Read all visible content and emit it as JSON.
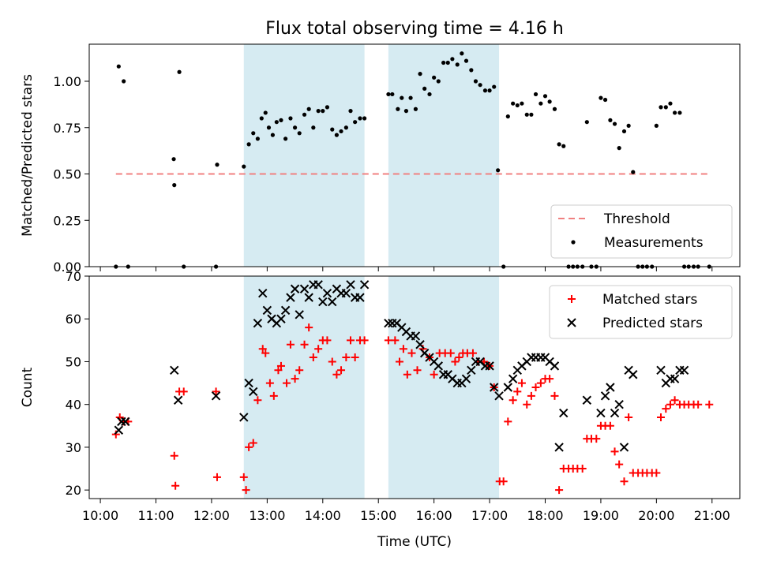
{
  "chart_data": [
    {
      "type": "scatter",
      "title": "Flux total observing time = 4.16 h",
      "xlabel": "",
      "ylabel": "Matched/Predicted stars",
      "xlim": [
        9.8,
        21.5
      ],
      "ylim": [
        0,
        1.2
      ],
      "yticks": [
        0.0,
        0.25,
        0.5,
        0.75,
        1.0
      ],
      "ytick_labels": [
        "0.00",
        "0.25",
        "0.50",
        "0.75",
        "1.00"
      ],
      "shaded_regions": [
        [
          12.58,
          14.75
        ],
        [
          15.18,
          17.17
        ]
      ],
      "shade_color": "#add8e6",
      "legend_position": "lower-right",
      "series": [
        {
          "name": "Threshold",
          "kind": "line",
          "color": "#f08080",
          "dashed": true,
          "x": [
            10.28,
            20.95
          ],
          "y": [
            0.5,
            0.5
          ]
        },
        {
          "name": "Measurements",
          "kind": "dot",
          "color": "#000000",
          "x": [
            10.28,
            10.33,
            10.42,
            10.5,
            11.32,
            11.33,
            11.42,
            11.5,
            12.08,
            12.1,
            12.58,
            12.67,
            12.75,
            12.83,
            12.9,
            12.97,
            13.03,
            13.1,
            13.17,
            13.25,
            13.33,
            13.42,
            13.5,
            13.58,
            13.67,
            13.75,
            13.83,
            13.92,
            14.0,
            14.08,
            14.17,
            14.25,
            14.33,
            14.42,
            14.5,
            14.58,
            14.67,
            14.75,
            15.18,
            15.25,
            15.35,
            15.42,
            15.5,
            15.58,
            15.67,
            15.75,
            15.83,
            15.92,
            16.0,
            16.08,
            16.17,
            16.25,
            16.33,
            16.42,
            16.5,
            16.58,
            16.67,
            16.75,
            16.83,
            16.92,
            17.0,
            17.08,
            17.15,
            17.25,
            17.33,
            17.42,
            17.5,
            17.58,
            17.67,
            17.75,
            17.83,
            17.92,
            18.0,
            18.08,
            18.17,
            18.25,
            18.33,
            18.42,
            18.5,
            18.58,
            18.67,
            18.75,
            18.83,
            18.92,
            19.0,
            19.08,
            19.17,
            19.25,
            19.33,
            19.42,
            19.5,
            19.58,
            19.67,
            19.75,
            19.83,
            19.92,
            20.0,
            20.08,
            20.17,
            20.25,
            20.33,
            20.42,
            20.5,
            20.58,
            20.67,
            20.75,
            20.95
          ],
          "y": [
            0.0,
            1.08,
            1.0,
            0.0,
            0.58,
            0.44,
            1.05,
            0.0,
            0.0,
            0.55,
            0.54,
            0.66,
            0.72,
            0.69,
            0.8,
            0.83,
            0.75,
            0.71,
            0.78,
            0.79,
            0.69,
            0.8,
            0.75,
            0.72,
            0.82,
            0.85,
            0.75,
            0.84,
            0.84,
            0.86,
            0.74,
            0.71,
            0.73,
            0.75,
            0.84,
            0.78,
            0.8,
            0.8,
            0.93,
            0.93,
            0.85,
            0.91,
            0.84,
            0.91,
            0.85,
            1.04,
            0.96,
            0.93,
            1.02,
            1.0,
            1.1,
            1.1,
            1.12,
            1.09,
            1.15,
            1.11,
            1.06,
            1.0,
            0.98,
            0.95,
            0.95,
            0.97,
            0.52,
            0.0,
            0.81,
            0.88,
            0.87,
            0.88,
            0.82,
            0.82,
            0.93,
            0.88,
            0.92,
            0.89,
            0.85,
            0.66,
            0.65,
            0.0,
            0.0,
            0.0,
            0.0,
            0.78,
            0.0,
            0.0,
            0.91,
            0.9,
            0.79,
            0.77,
            0.64,
            0.73,
            0.76,
            0.51,
            0.0,
            0.0,
            0.0,
            0.0,
            0.76,
            0.86,
            0.86,
            0.88,
            0.83,
            0.83,
            0.0,
            0.0,
            0.0,
            0.0,
            0.0
          ]
        }
      ]
    },
    {
      "type": "scatter",
      "title": "",
      "xlabel": "Time (UTC)",
      "ylabel": "Count",
      "xlim": [
        9.8,
        21.5
      ],
      "ylim": [
        18,
        70
      ],
      "yticks": [
        20,
        30,
        40,
        50,
        60,
        70
      ],
      "ytick_labels": [
        "20",
        "30",
        "40",
        "50",
        "60",
        "70"
      ],
      "xticks": [
        10,
        11,
        12,
        13,
        14,
        15,
        16,
        17,
        18,
        19,
        20,
        21
      ],
      "xtick_labels": [
        "10:00",
        "11:00",
        "12:00",
        "13:00",
        "14:00",
        "15:00",
        "16:00",
        "17:00",
        "18:00",
        "19:00",
        "20:00",
        "21:00"
      ],
      "shaded_regions": [
        [
          12.58,
          14.75
        ],
        [
          15.18,
          17.17
        ]
      ],
      "shade_color": "#add8e6",
      "legend_position": "top-right",
      "series": [
        {
          "name": "Matched stars",
          "marker": "plus",
          "color": "#ff0000",
          "x": [
            10.28,
            10.35,
            10.42,
            10.5,
            11.33,
            11.35,
            11.42,
            11.5,
            12.08,
            12.1,
            12.58,
            12.62,
            12.67,
            12.75,
            12.83,
            12.92,
            12.97,
            13.05,
            13.12,
            13.2,
            13.25,
            13.35,
            13.42,
            13.5,
            13.58,
            13.67,
            13.75,
            13.83,
            13.92,
            14.0,
            14.08,
            14.17,
            14.25,
            14.33,
            14.42,
            14.5,
            14.58,
            14.67,
            14.75,
            15.18,
            15.3,
            15.38,
            15.45,
            15.52,
            15.6,
            15.7,
            15.8,
            15.92,
            16.0,
            16.1,
            16.2,
            16.3,
            16.38,
            16.45,
            16.52,
            16.6,
            16.7,
            16.8,
            16.9,
            17.0,
            17.08,
            17.18,
            17.25,
            17.33,
            17.42,
            17.5,
            17.58,
            17.67,
            17.75,
            17.83,
            17.92,
            18.0,
            18.08,
            18.17,
            18.25,
            18.33,
            18.42,
            18.5,
            18.58,
            18.67,
            18.75,
            18.83,
            18.92,
            19.0,
            19.08,
            19.17,
            19.25,
            19.33,
            19.42,
            19.5,
            19.58,
            19.67,
            19.75,
            19.83,
            19.92,
            20.0,
            20.08,
            20.17,
            20.25,
            20.33,
            20.42,
            20.5,
            20.58,
            20.67,
            20.75,
            20.95
          ],
          "y": [
            33,
            37,
            36,
            36,
            28,
            21,
            43,
            43,
            43,
            23,
            23,
            20,
            30,
            31,
            41,
            53,
            52,
            45,
            42,
            48,
            49,
            45,
            54,
            46,
            48,
            54,
            58,
            51,
            53,
            55,
            55,
            50,
            47,
            48,
            51,
            55,
            51,
            55,
            55,
            55,
            55,
            50,
            53,
            47,
            52,
            48,
            53,
            51,
            47,
            52,
            52,
            52,
            50,
            51,
            52,
            52,
            52,
            50,
            50,
            49,
            44,
            22,
            22,
            36,
            41,
            43,
            45,
            40,
            42,
            44,
            45,
            46,
            46,
            42,
            20,
            25,
            25,
            25,
            25,
            25,
            32,
            32,
            32,
            35,
            35,
            35,
            29,
            26,
            22,
            37,
            24,
            24,
            24,
            24,
            24,
            24,
            37,
            39,
            40,
            41,
            40,
            40,
            40,
            40,
            40,
            40
          ]
        },
        {
          "name": "Predicted stars",
          "marker": "x",
          "color": "#000000",
          "x": [
            10.33,
            10.38,
            10.45,
            11.33,
            11.4,
            12.08,
            12.58,
            12.67,
            12.75,
            12.83,
            12.92,
            13.0,
            13.08,
            13.17,
            13.25,
            13.33,
            13.42,
            13.5,
            13.58,
            13.67,
            13.75,
            13.83,
            13.92,
            14.0,
            14.08,
            14.17,
            14.25,
            14.33,
            14.42,
            14.5,
            14.58,
            14.67,
            14.75,
            15.18,
            15.25,
            15.33,
            15.42,
            15.5,
            15.58,
            15.67,
            15.75,
            15.83,
            15.92,
            16.0,
            16.08,
            16.17,
            16.25,
            16.33,
            16.42,
            16.5,
            16.58,
            16.67,
            16.75,
            16.83,
            16.92,
            17.0,
            17.08,
            17.17,
            17.33,
            17.42,
            17.5,
            17.58,
            17.67,
            17.75,
            17.83,
            17.92,
            18.0,
            18.08,
            18.17,
            18.25,
            18.33,
            18.75,
            19.0,
            19.08,
            19.17,
            19.25,
            19.33,
            19.42,
            19.5,
            19.58,
            20.08,
            20.17,
            20.25,
            20.33,
            20.42,
            20.5
          ],
          "y": [
            34,
            36,
            36,
            48,
            41,
            42,
            37,
            45,
            43,
            59,
            66,
            62,
            60,
            59,
            60,
            62,
            65,
            67,
            61,
            67,
            65,
            68,
            68,
            64,
            66,
            64,
            67,
            66,
            66,
            68,
            65,
            65,
            68,
            59,
            59,
            59,
            58,
            57,
            56,
            56,
            54,
            52,
            51,
            50,
            49,
            47,
            47,
            46,
            45,
            45,
            46,
            48,
            50,
            50,
            49,
            49,
            44,
            42,
            44,
            46,
            48,
            49,
            50,
            51,
            51,
            51,
            51,
            50,
            49,
            30,
            38,
            41,
            38,
            42,
            44,
            38,
            40,
            30,
            48,
            47,
            48,
            45,
            46,
            46,
            48,
            48
          ]
        }
      ]
    }
  ]
}
